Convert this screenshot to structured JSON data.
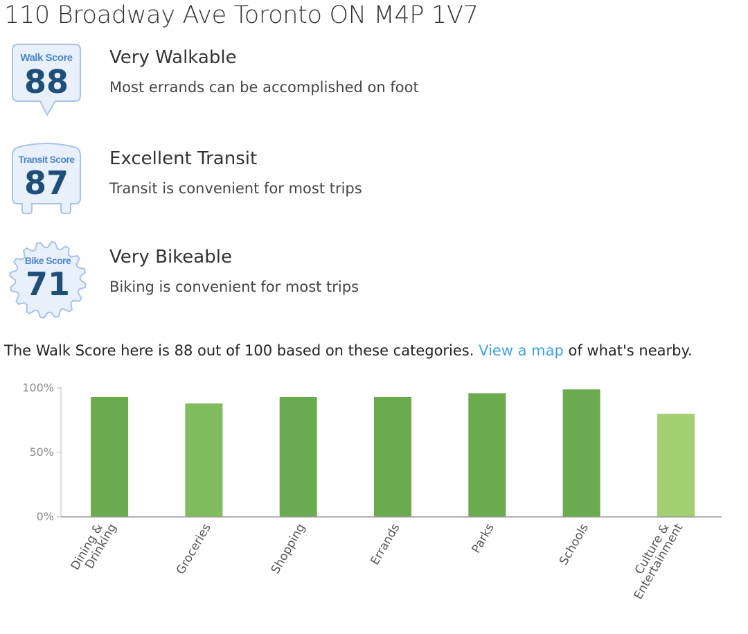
{
  "address": "110 Broadway Ave Toronto ON M4P 1V7",
  "scores": {
    "walk": {
      "badge_label": "Walk Score",
      "value": "88",
      "title": "Very Walkable",
      "description": "Most errands can be accomplished on foot"
    },
    "transit": {
      "badge_label": "Transit Score",
      "value": "87",
      "title": "Excellent Transit",
      "description": "Transit is convenient for most trips"
    },
    "bike": {
      "badge_label": "Bike Score",
      "value": "71",
      "title": "Very Bikeable",
      "description": "Biking is convenient for most trips"
    }
  },
  "summary": {
    "prefix": "The Walk Score here is 88 out of 100 based on these categories. ",
    "link_text": "View a map",
    "suffix": " of what's nearby."
  },
  "colors": {
    "badge_blue": "#1f4e79",
    "badge_label_blue": "#4f86c6",
    "badge_fill": "#e8f0fb",
    "badge_border": "#a9c2e6",
    "link": "#3ea1e6",
    "bar_dark": "#6aab4f",
    "bar_mid": "#80bb5d",
    "bar_light": "#a3d070"
  },
  "chart_data": {
    "type": "bar",
    "categories": [
      [
        "Dining &",
        "Drinking"
      ],
      [
        "Groceries"
      ],
      [
        "Shopping"
      ],
      [
        "Errands"
      ],
      [
        "Parks"
      ],
      [
        "Schools"
      ],
      [
        "Culture &",
        "Entertainment"
      ]
    ],
    "values": [
      93,
      88,
      93,
      93,
      96,
      99,
      80
    ],
    "bar_colors": [
      "#6aab4f",
      "#80bb5d",
      "#6aab4f",
      "#6aab4f",
      "#6aab4f",
      "#6aab4f",
      "#a3d070"
    ],
    "y_ticks": [
      "0%",
      "50%",
      "100%"
    ],
    "y_tick_values": [
      0,
      50,
      100
    ],
    "ylim": [
      0,
      100
    ],
    "title": "",
    "xlabel": "",
    "ylabel": ""
  }
}
